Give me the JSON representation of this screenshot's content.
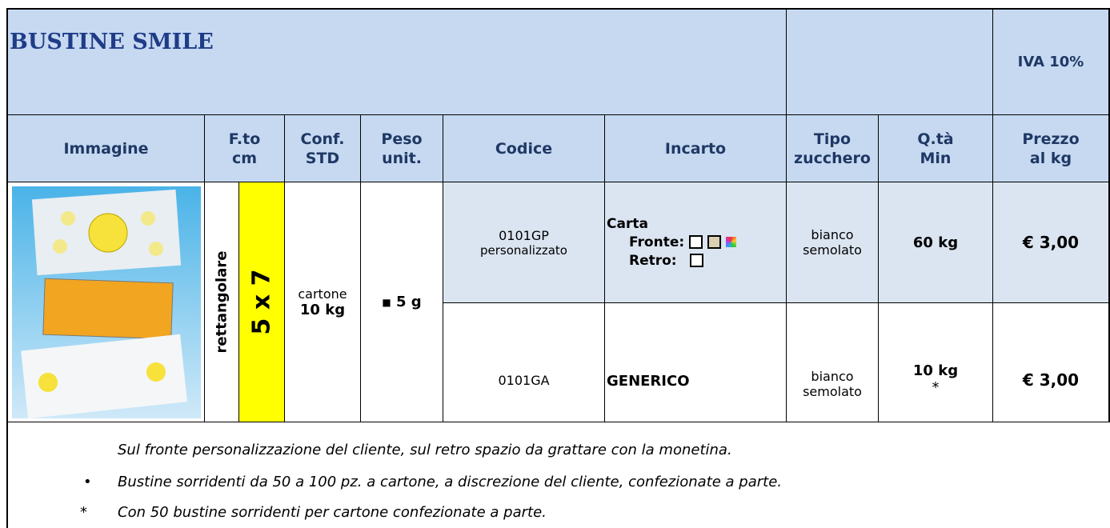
{
  "header": {
    "title": "BUSTINE SMILE",
    "vat": "IVA 10%"
  },
  "table": {
    "headers": [
      [
        "Immagine"
      ],
      [
        "F.to",
        "cm"
      ],
      [
        "Conf.",
        "STD"
      ],
      [
        "Peso",
        "unit."
      ],
      [
        "Codice"
      ],
      [
        "Incarto"
      ],
      [
        "Tipo",
        "zucchero"
      ],
      [
        "Q.tà",
        "Min"
      ],
      [
        "Prezzo",
        "al kg"
      ]
    ],
    "shape": "rettangolare",
    "size": "5 x 7",
    "pack": [
      "cartone",
      "10 kg"
    ],
    "weight": "5 g",
    "rows": [
      {
        "code": "0101GP",
        "code_note": "personalizzato",
        "wrap": {
          "material": "Carta",
          "front": "Fronte:",
          "back": "Retro:"
        },
        "sugar": [
          "bianco",
          "semolato"
        ],
        "min_qty": "60 kg",
        "price": "€ 3,00"
      },
      {
        "code": "0101GA",
        "wrap": {
          "material": "GENERICO"
        },
        "sugar": [
          "bianco",
          "semolato"
        ],
        "min_qty": "10 kg",
        "qty_note": "*",
        "price": "€ 3,00"
      }
    ]
  },
  "notes": {
    "intro": "Sul fronte personalizzazione del cliente, sul retro spazio da grattare con la monetina.",
    "bullet": "Bustine sorridenti da 50 a 100 pz. a cartone, a discrezione del cliente, confezionate a parte.",
    "star_marker": "*",
    "star": "Con 50 bustine sorridenti per cartone confezionate a parte."
  }
}
